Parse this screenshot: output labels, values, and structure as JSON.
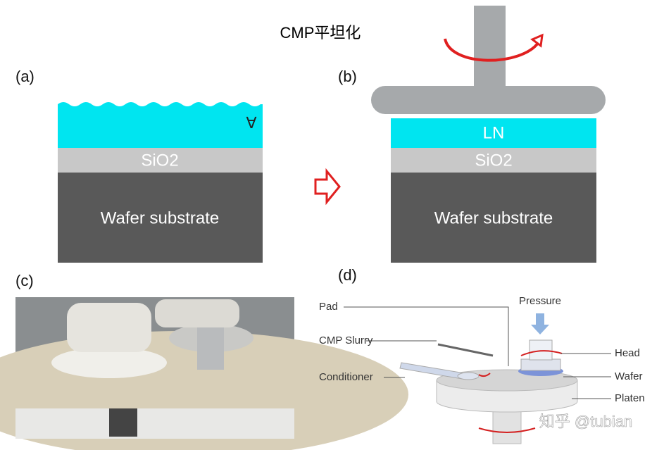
{
  "title": "CMP平坦化",
  "panel_a": {
    "label": "(a)",
    "mark": "∀",
    "layers": [
      "SiO2",
      "Wafer substrate"
    ]
  },
  "panel_b": {
    "label": "(b)",
    "layers": [
      "LN",
      "SiO2",
      "Wafer substrate"
    ]
  },
  "panel_c": {
    "label": "(c)"
  },
  "panel_d": {
    "label": "(d)",
    "pressure": "Pressure",
    "labels_left": [
      "Pad",
      "CMP Slurry",
      "Conditioner"
    ],
    "labels_right": [
      "Head",
      "Wafer",
      "Platen"
    ]
  },
  "watermark": "知乎 @tubian"
}
